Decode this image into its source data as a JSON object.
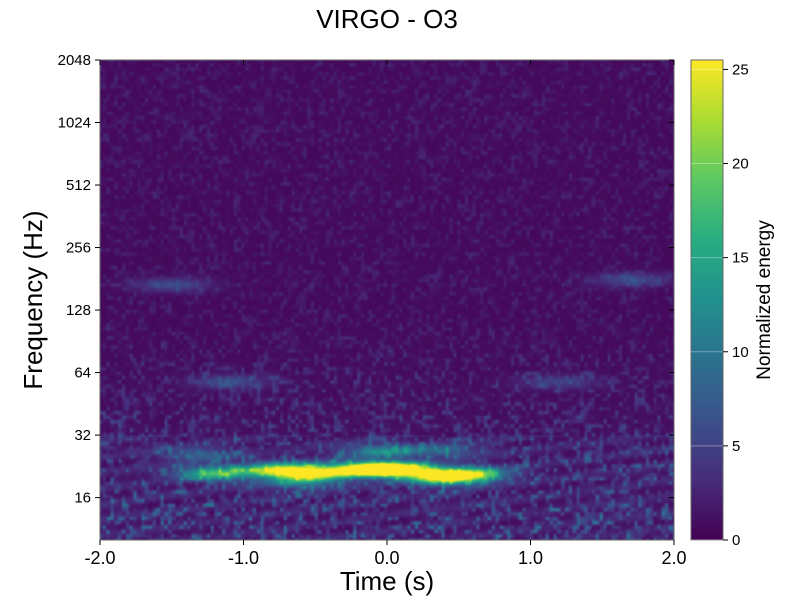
{
  "chart_data": {
    "type": "heatmap",
    "title": "VIRGO - O3",
    "xlabel": "Time (s)",
    "ylabel": "Frequency (Hz)",
    "colorbar_label": "Normalized energy",
    "xlim": [
      -2.0,
      2.0
    ],
    "ylim": [
      10,
      2048
    ],
    "yscale": "log2",
    "x_ticks": [
      -2.0,
      -1.0,
      0.0,
      1.0,
      2.0
    ],
    "x_tick_labels": [
      "-2.0",
      "-1.0",
      "0.0",
      "1.0",
      "2.0"
    ],
    "y_ticks": [
      16,
      32,
      64,
      128,
      256,
      512,
      1024,
      2048
    ],
    "y_tick_labels": [
      "16",
      "32",
      "64",
      "128",
      "256",
      "512",
      "1024",
      "2048"
    ],
    "colorbar_range": [
      0,
      25.5
    ],
    "colorbar_ticks": [
      0,
      5,
      10,
      15,
      20,
      25
    ],
    "colorbar_tick_labels": [
      "0",
      "5",
      "10",
      "15",
      "20",
      "25"
    ],
    "colormap": "viridis",
    "colormap_stops": [
      "#440154",
      "#472c7a",
      "#3b518b",
      "#2c718e",
      "#21908d",
      "#27ad81",
      "#5cc863",
      "#aadc32",
      "#fde725"
    ],
    "grid": false,
    "hotspots": [
      {
        "t": 0.05,
        "f": 22,
        "energy": 25.5
      },
      {
        "t": -0.15,
        "f": 22,
        "energy": 22
      },
      {
        "t": -0.55,
        "f": 21,
        "energy": 20
      },
      {
        "t": -0.75,
        "f": 22,
        "energy": 16
      },
      {
        "t": 0.4,
        "f": 20,
        "energy": 20
      },
      {
        "t": 0.55,
        "f": 21,
        "energy": 17
      },
      {
        "t": -1.2,
        "f": 21,
        "energy": 15
      },
      {
        "t": -0.05,
        "f": 27,
        "energy": 9
      },
      {
        "t": -0.6,
        "f": 19,
        "energy": 8
      },
      {
        "t": -1.3,
        "f": 26,
        "energy": 6
      },
      {
        "t": 0.4,
        "f": 27,
        "energy": 6
      },
      {
        "t": -1.1,
        "f": 58,
        "energy": 5
      },
      {
        "t": 1.2,
        "f": 58,
        "energy": 4
      },
      {
        "t": -1.5,
        "f": 170,
        "energy": 5
      },
      {
        "t": 1.7,
        "f": 180,
        "energy": 5
      }
    ]
  }
}
